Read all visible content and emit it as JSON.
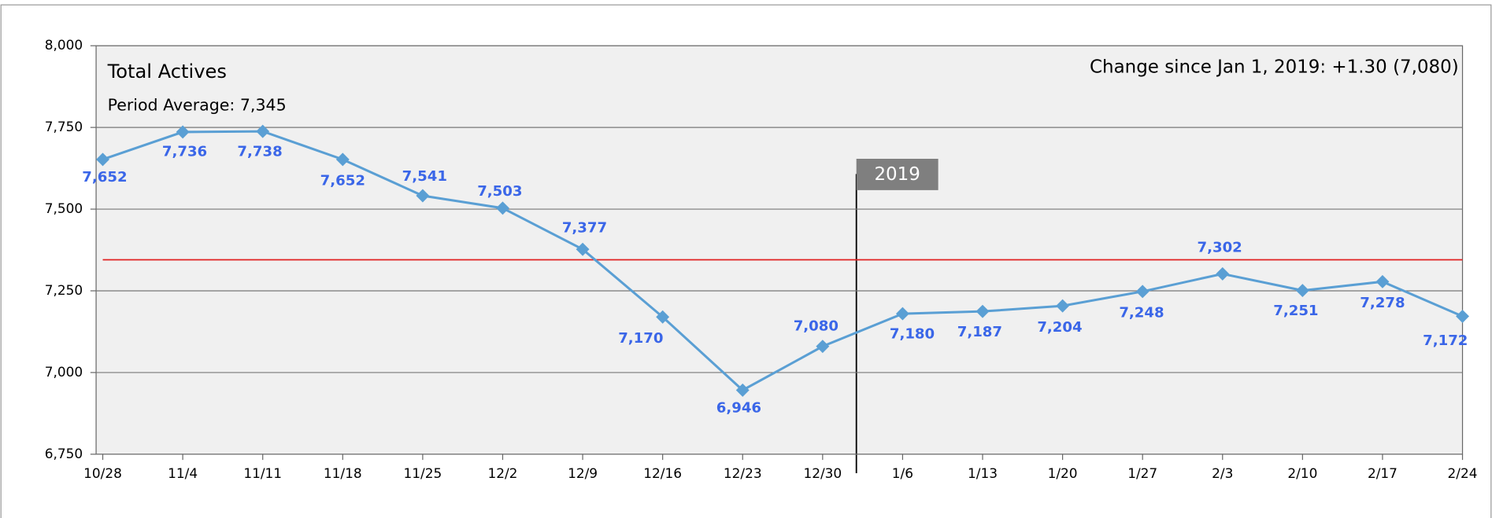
{
  "chart_data": {
    "type": "line",
    "title": "Total Actives",
    "average": {
      "label": "Period Average: 7,345",
      "value": 7345,
      "color": "#e02020"
    },
    "change_note": "Change since Jan 1, 2019: +1.30 (7,080)",
    "divider_label": "2019",
    "categories": [
      "10/28",
      "11/4",
      "11/11",
      "11/18",
      "11/25",
      "12/2",
      "12/9",
      "12/16",
      "12/23",
      "12/30",
      "1/6",
      "1/13",
      "1/20",
      "1/27",
      "2/3",
      "2/10",
      "2/17",
      "2/24"
    ],
    "series": [
      {
        "name": "Total Actives",
        "color": "#5a9fd4",
        "values": [
          7652,
          7736,
          7738,
          7652,
          7541,
          7503,
          7377,
          7170,
          6946,
          7080,
          7180,
          7187,
          7204,
          7248,
          7302,
          7251,
          7278,
          7172
        ],
        "value_labels": [
          "7,652",
          "7,736",
          "7,738",
          "7,652",
          "7,541",
          "7,503",
          "7,377",
          "7,170",
          "6,946",
          "7,080",
          "7,180",
          "7,187",
          "7,204",
          "7,248",
          "7,302",
          "7,251",
          "7,278",
          "7,172"
        ]
      }
    ],
    "ylim": [
      6750,
      8000
    ],
    "yticks": [
      {
        "value": 6750,
        "label": "6,750"
      },
      {
        "value": 7000,
        "label": "7,000"
      },
      {
        "value": 7250,
        "label": "7,250"
      },
      {
        "value": 7500,
        "label": "7,500"
      },
      {
        "value": 7750,
        "label": "7,750"
      },
      {
        "value": 8000,
        "label": "8,000"
      }
    ],
    "grid": true
  }
}
